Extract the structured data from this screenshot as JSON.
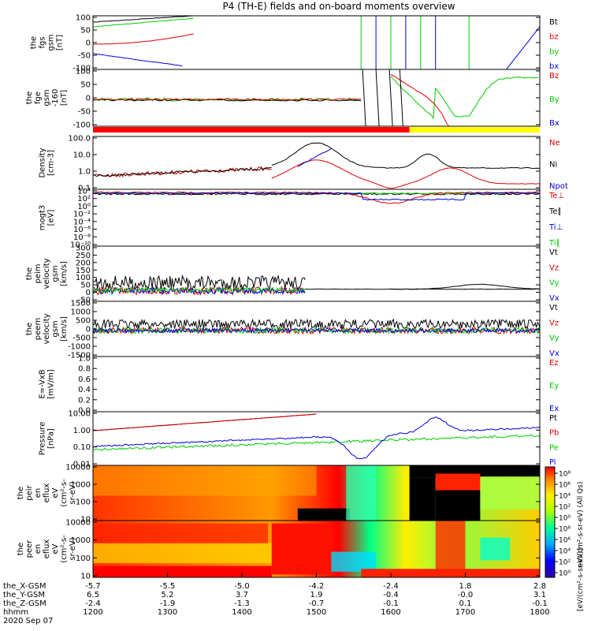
{
  "title": "P4 (TH-E) fields and on-board moments overview",
  "colors": {
    "black": "#000000",
    "red": "#dd0000",
    "green": "#00cc00",
    "blue": "#0000dd",
    "yellow": "#ffff00"
  },
  "chart_data": {
    "type": "line",
    "x_axis": {
      "rows": [
        {
          "label": "the_X-GSM",
          "values": [
            "-5.7",
            "-5.5",
            "-5.0",
            "-4.2",
            "-2.4",
            "1.8",
            "2.8"
          ]
        },
        {
          "label": "the_Y-GSM",
          "values": [
            "6.5",
            "5.2",
            "3.7",
            "1.9",
            "-0.4",
            "-0.0",
            "3.1"
          ]
        },
        {
          "label": "the_Z-GSM",
          "values": [
            "-2.4",
            "-1.9",
            "-1.3",
            "-0.7",
            "-0.1",
            "0.1",
            "-0.1"
          ]
        },
        {
          "label": "hhmm",
          "values": [
            "1200",
            "1300",
            "1400",
            "1500",
            "1600",
            "1700",
            "1800"
          ]
        }
      ],
      "date": "2020 Sep 07",
      "range": [
        1200,
        1800
      ]
    },
    "panels": [
      {
        "id": "fgs-gsm",
        "ylabel": [
          "the",
          "fgs",
          "gsm",
          "[nT]"
        ],
        "ticks": [
          "100",
          "50",
          "0",
          "-50",
          "-100"
        ],
        "ylim": [
          -100,
          100
        ],
        "legend": [
          {
            "name": "Bt",
            "color": "#000000"
          },
          {
            "name": "bz",
            "color": "#dd0000"
          },
          {
            "name": "by",
            "color": "#00cc00"
          },
          {
            "name": "bx",
            "color": "#0000dd"
          }
        ]
      },
      {
        "id": "fge-gsm",
        "ylabel": [
          "the",
          "fge",
          "gsm",
          "-160",
          "[nT]"
        ],
        "ticks": [
          "100",
          "50",
          "0",
          "-50",
          "-100"
        ],
        "ylim": [
          -130,
          130
        ],
        "legend": [
          {
            "name": "Bz",
            "color": "#dd0000"
          },
          {
            "name": "By",
            "color": "#00cc00"
          },
          {
            "name": "Bx",
            "color": "#0000dd"
          }
        ]
      },
      {
        "id": "density",
        "ylabel": [
          "Density",
          "[cm-3]"
        ],
        "ticks": [
          "100.0",
          "10.0",
          "1.0",
          "0.1"
        ],
        "ylim": [
          0.07,
          200
        ],
        "log": true,
        "legend": [
          {
            "name": "Ne",
            "color": "#dd0000"
          },
          {
            "name": "Ni",
            "color": "#000000"
          },
          {
            "name": "Npot",
            "color": "#0000dd"
          }
        ]
      },
      {
        "id": "temperature",
        "ylabel": [
          "mogt3",
          "[eV]"
        ],
        "ticks": [
          "10⁴",
          "10²",
          "10⁰",
          "10⁻²",
          "10⁻⁴",
          "10⁻⁶",
          "10⁻⁸",
          "10⁻¹⁰"
        ],
        "log": true,
        "legend": [
          {
            "name": "Te⊥",
            "color": "#dd0000"
          },
          {
            "name": "Te∥",
            "color": "#000000"
          },
          {
            "name": "Ti⊥",
            "color": "#0000dd"
          },
          {
            "name": "Ti∥",
            "color": "#00cc00"
          }
        ]
      },
      {
        "id": "peim-velocity",
        "ylabel": [
          "the",
          "peim",
          "velocity",
          "gsm",
          "[km/s]"
        ],
        "ticks": [
          "300",
          "250",
          "200",
          "150",
          "100",
          "50",
          "0",
          "-50"
        ],
        "ylim": [
          -50,
          300
        ],
        "legend": [
          {
            "name": "Vt",
            "color": "#000000"
          },
          {
            "name": "Vz",
            "color": "#dd0000"
          },
          {
            "name": "Vy",
            "color": "#00cc00"
          },
          {
            "name": "Vx",
            "color": "#0000dd"
          }
        ]
      },
      {
        "id": "peem-velocity",
        "ylabel": [
          "the",
          "peem",
          "velocity",
          "gsm",
          "[km/s]"
        ],
        "ticks": [
          "1500",
          "1000",
          "500",
          "0",
          "-500",
          "-1000",
          "-1500"
        ],
        "ylim": [
          -1500,
          1500
        ],
        "legend": [
          {
            "name": "Vt",
            "color": "#000000"
          },
          {
            "name": "Vz",
            "color": "#dd0000"
          },
          {
            "name": "Vy",
            "color": "#00cc00"
          },
          {
            "name": "Vx",
            "color": "#0000dd"
          }
        ]
      },
      {
        "id": "efield",
        "ylabel": [
          "E=-VxB",
          "[mV/m]"
        ],
        "ticks": [
          "1.0",
          "0.8",
          "0.6",
          "0.4",
          "0.2",
          "0.0"
        ],
        "ylim": [
          0,
          1
        ],
        "legend": [
          {
            "name": "Ez",
            "color": "#dd0000"
          },
          {
            "name": "Ey",
            "color": "#00cc00"
          },
          {
            "name": "Ex",
            "color": "#0000dd"
          }
        ]
      },
      {
        "id": "pressure",
        "ylabel": [
          "Pressure",
          "[nPa]"
        ],
        "ticks": [
          "10.00",
          "1.00",
          "0.10",
          "0.01"
        ],
        "log": true,
        "legend": [
          {
            "name": "Pt",
            "color": "#000000"
          },
          {
            "name": "Pb",
            "color": "#dd0000"
          },
          {
            "name": "Pe",
            "color": "#00cc00"
          },
          {
            "name": "Pi",
            "color": "#0000dd"
          }
        ]
      },
      {
        "id": "peir-eflux",
        "ylabel": [
          "the",
          "peir",
          "en",
          "eflux",
          "eV",
          "(cm²-s-",
          "sr-eV)"
        ],
        "ticks": [
          "10000",
          "1000",
          "100",
          "10"
        ],
        "type": "heatmap"
      },
      {
        "id": "peer-eflux",
        "ylabel": [
          "the",
          "peer",
          "en",
          "eflux",
          "eV",
          "(cm²-s-",
          "sr-eV)"
        ],
        "ticks": [
          "10000",
          "1000",
          "100",
          "10"
        ],
        "type": "heatmap"
      }
    ],
    "colorbar": {
      "ticks": [
        "10⁸",
        "10⁶",
        "10⁴",
        "10²",
        "10⁰",
        "10⁸",
        "10⁶",
        "10⁴",
        "10²",
        "10⁰"
      ],
      "label_top": "eV/(cm²-s-sr-eV) (All Qs)",
      "label_bottom": "[eV/(cm²-s-sr-eV)]"
    },
    "mode_bar": {
      "segments": [
        {
          "from": 1200,
          "to": 1625,
          "color": "#ff0000"
        },
        {
          "from": 1625,
          "to": 1800,
          "color": "#ffff00"
        }
      ]
    }
  }
}
